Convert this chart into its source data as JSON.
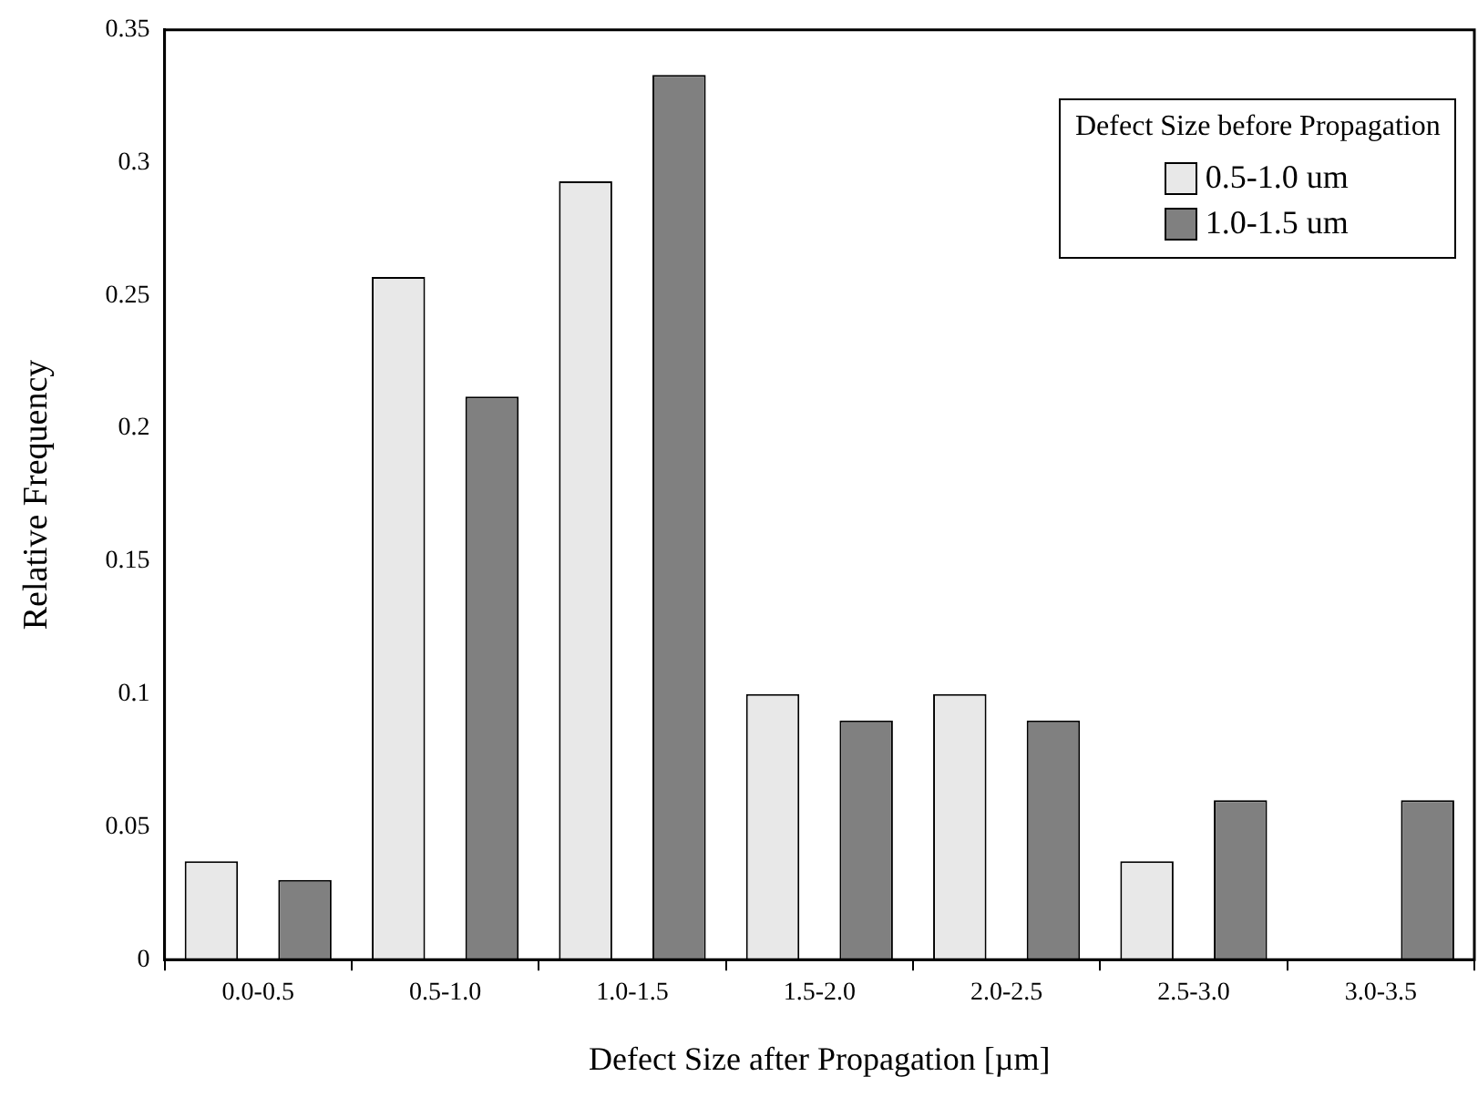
{
  "chart_data": {
    "type": "bar",
    "xlabel": "Defect Size after Propagation [µm]",
    "ylabel": "Relative Frequency",
    "legend_title": "Defect Size before Propagation",
    "legend": "top right",
    "categories": [
      "0.0-0.5",
      "0.5-1.0",
      "1.0-1.5",
      "1.5-2.0",
      "2.0-2.5",
      "2.5-3.0",
      "3.0-3.5"
    ],
    "series": [
      {
        "name": "0.5-1.0 um",
        "color": "#e8e8e8",
        "values": [
          0.037,
          0.257,
          0.293,
          0.1,
          0.1,
          0.037,
          0
        ]
      },
      {
        "name": "1.0-1.5 um",
        "color": "#808080",
        "values": [
          0.03,
          0.212,
          0.333,
          0.09,
          0.09,
          0.06,
          0.06
        ]
      }
    ],
    "ylim": [
      0,
      0.35
    ],
    "yticks": [
      0,
      0.05,
      0.1,
      0.15,
      0.2,
      0.25,
      0.3,
      0.35
    ]
  }
}
